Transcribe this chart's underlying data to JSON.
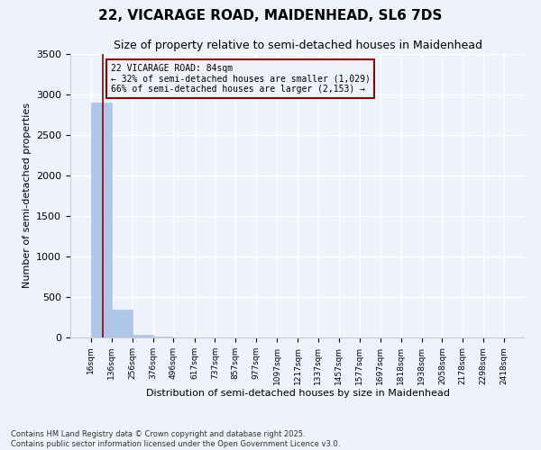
{
  "title": "22, VICARAGE ROAD, MAIDENHEAD, SL6 7DS",
  "subtitle": "Size of property relative to semi-detached houses in Maidenhead",
  "ylabel": "Number of semi-detached properties",
  "xlabel": "Distribution of semi-detached houses by size in Maidenhead",
  "footer_line1": "Contains HM Land Registry data © Crown copyright and database right 2025.",
  "footer_line2": "Contains public sector information licensed under the Open Government Licence v3.0.",
  "annotation_line1": "22 VICARAGE ROAD: 84sqm",
  "annotation_line2": "← 32% of semi-detached houses are smaller (1,029)",
  "annotation_line3": "66% of semi-detached houses are larger (2,153) →",
  "bar_edges": [
    16,
    136,
    256,
    376,
    496,
    617,
    737,
    857,
    977,
    1097,
    1217,
    1337,
    1457,
    1577,
    1697,
    1818,
    1938,
    2058,
    2178,
    2298,
    2418
  ],
  "bar_heights": [
    2900,
    350,
    30,
    8,
    5,
    3,
    2,
    1,
    1,
    1,
    1,
    0,
    0,
    0,
    0,
    0,
    0,
    0,
    0,
    0
  ],
  "bar_color": "#aec6e8",
  "bar_edgecolor": "#aec6e8",
  "property_line_x": 84,
  "property_line_color": "#8b0000",
  "annotation_box_color": "#8b0000",
  "background_color": "#eef2fa",
  "grid_color": "#ffffff",
  "ylim": [
    0,
    3500
  ],
  "yticks": [
    0,
    500,
    1000,
    1500,
    2000,
    2500,
    3000,
    3500
  ]
}
